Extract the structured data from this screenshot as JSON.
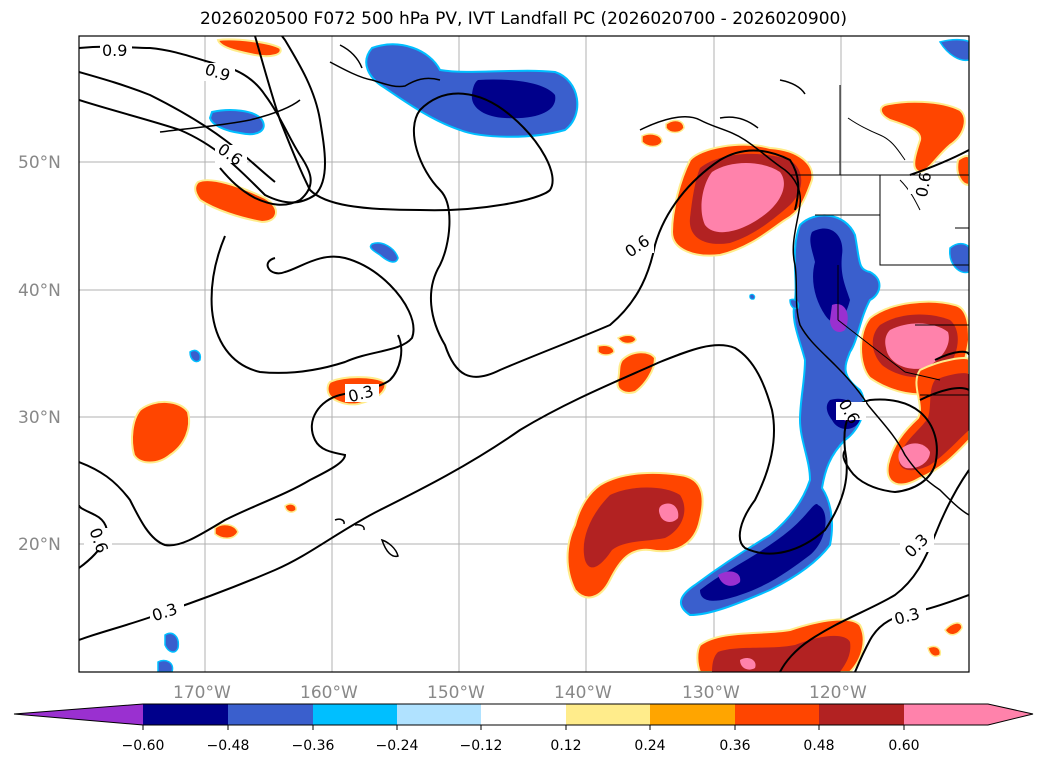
{
  "title": "2026020500 F072 500 hPa PV, IVT Landfall PC (2026020700 - 2026020900)",
  "map": {
    "lon_ticks": [
      "170°W",
      "160°W",
      "150°W",
      "140°W",
      "130°W",
      "120°W"
    ],
    "lat_ticks": [
      "50°N",
      "40°N",
      "30°N",
      "20°N"
    ],
    "contour_labels": [
      "0.9",
      "0.9",
      "0.6",
      "0.6",
      "0.6",
      "0.3",
      "0.3",
      "0.3",
      "0.3",
      "0.6",
      "0.6"
    ]
  },
  "colorbar": {
    "colors": [
      "#9a30d0",
      "#00008b",
      "#3a5fcd",
      "#00bfff",
      "#b0e2ff",
      "#ffffff",
      "#ffec8b",
      "#ffa500",
      "#ff4500",
      "#b22222",
      "#ff82ab",
      "#ff82ab"
    ],
    "ticks": [
      "−0.60",
      "−0.48",
      "−0.36",
      "−0.24",
      "−0.12",
      "0.12",
      "0.24",
      "0.36",
      "0.48",
      "0.60"
    ]
  }
}
